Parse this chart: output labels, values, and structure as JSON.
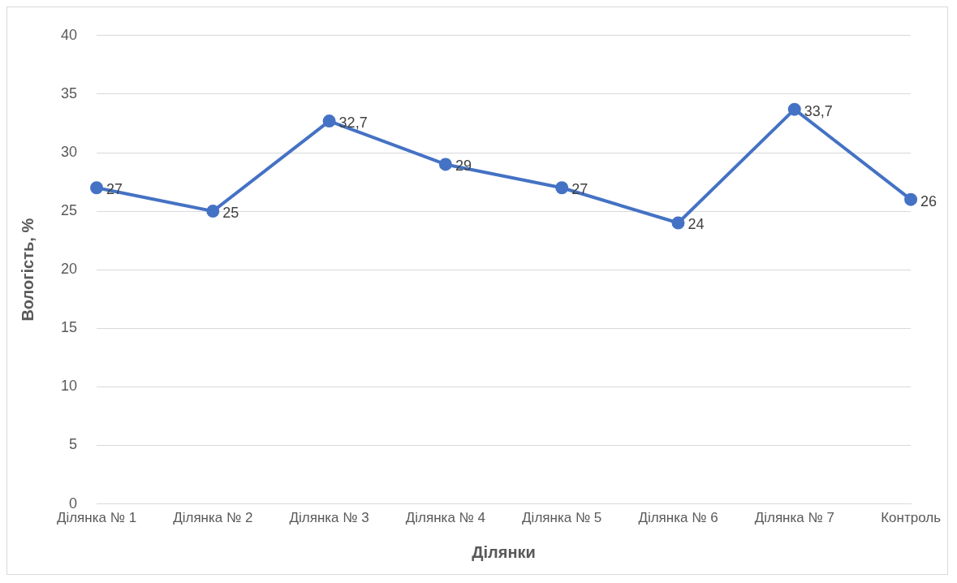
{
  "chart_data": {
    "type": "line",
    "xlabel": "Ділянки",
    "ylabel": "Вологість, %",
    "categories": [
      "Ділянка № 1",
      "Ділянка № 2",
      "Ділянка № 3",
      "Ділянка № 4",
      "Ділянка № 5",
      "Ділянка № 6",
      "Ділянка № 7",
      "Контроль"
    ],
    "values": [
      27,
      25,
      32.7,
      29,
      27,
      24,
      33.7,
      26
    ],
    "value_labels": [
      "27",
      "25",
      "32,7",
      "29",
      "27",
      "24",
      "33,7",
      "26"
    ],
    "color": "#4472c4",
    "marker": "circle",
    "line_style": "solid",
    "ylim": [
      0,
      40
    ],
    "yticks": [
      0,
      5,
      10,
      15,
      20,
      25,
      30,
      35,
      40
    ],
    "grid": "y",
    "legend": false
  }
}
